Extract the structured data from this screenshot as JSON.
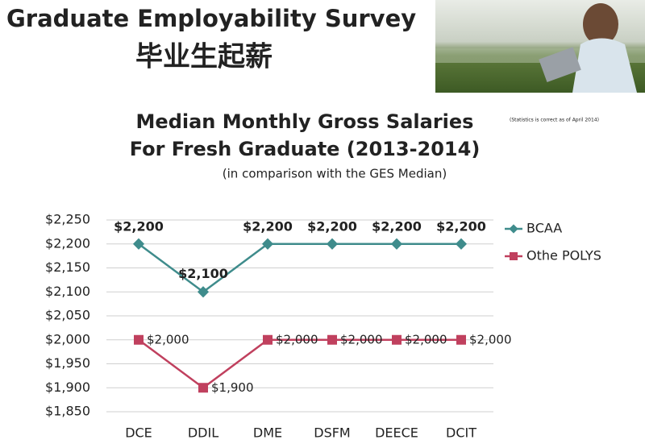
{
  "slide": {
    "title": "Graduate Employability Survey",
    "subtitle": "毕业生起薪",
    "note": "(Statistics is correct as of April 2014)"
  },
  "chart_data": {
    "type": "line",
    "title_lines": [
      "Median Monthly Gross Salaries",
      "For Fresh Graduate (2013-2014)"
    ],
    "subtitle": "(in comparison with the GES Median)",
    "categories": [
      "DCE",
      "DDIL",
      "DME",
      "DSFM",
      "DEECE",
      "DCIT"
    ],
    "series": [
      {
        "name": "BCAA",
        "color": "#3f8c8c",
        "values": [
          2200,
          2100,
          2200,
          2200,
          2200,
          2200
        ],
        "value_labels": [
          "$2,200",
          "$2,100",
          "$2,200",
          "$2,200",
          "$2,200",
          "$2,200"
        ]
      },
      {
        "name": "Othe POLYS",
        "color": "#c0405e",
        "values": [
          2000,
          1900,
          2000,
          2000,
          2000,
          2000
        ],
        "value_labels": [
          "$2,000",
          "$1,900",
          "$2,000",
          "$2,000",
          "$2,000",
          "$2,000"
        ]
      }
    ],
    "ylim": [
      1850,
      2250
    ],
    "yticks": [
      {
        "value": 1850,
        "label": "$1,850"
      },
      {
        "value": 1900,
        "label": "$1,900"
      },
      {
        "value": 1950,
        "label": "$1,950"
      },
      {
        "value": 2000,
        "label": "$2,000"
      },
      {
        "value": 2050,
        "label": "$2,050"
      },
      {
        "value": 2100,
        "label": "$2,100"
      },
      {
        "value": 2150,
        "label": "$2,150"
      },
      {
        "value": 2200,
        "label": "$2,200"
      },
      {
        "value": 2250,
        "label": "$2,250"
      }
    ],
    "grid": true,
    "legend": "right"
  }
}
